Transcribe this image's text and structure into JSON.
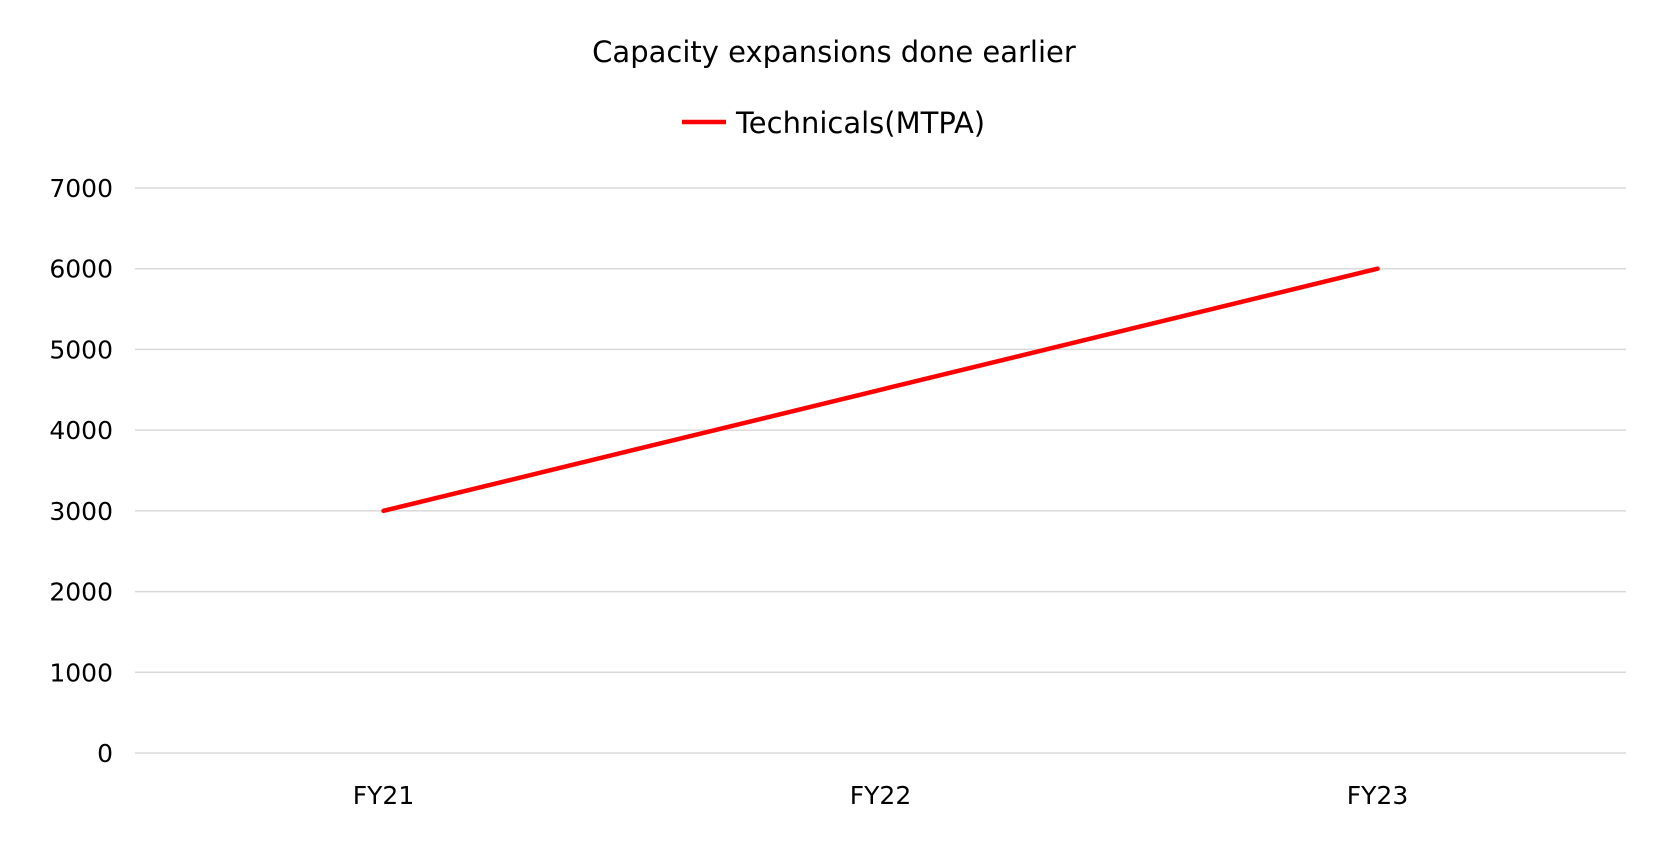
{
  "chart_data": {
    "type": "line",
    "title": "Capacity expansions done earlier",
    "xlabel": "",
    "ylabel": "",
    "categories": [
      "FY21",
      "FY22",
      "FY23"
    ],
    "series": [
      {
        "name": "Technicals(MTPA)",
        "values": [
          3000,
          4500,
          6000
        ],
        "color": "#ff0000"
      }
    ],
    "ylim": [
      0,
      7000
    ],
    "yticks": [
      0,
      1000,
      2000,
      3000,
      4000,
      5000,
      6000,
      7000
    ],
    "grid": true,
    "legend_position": "top-center"
  }
}
